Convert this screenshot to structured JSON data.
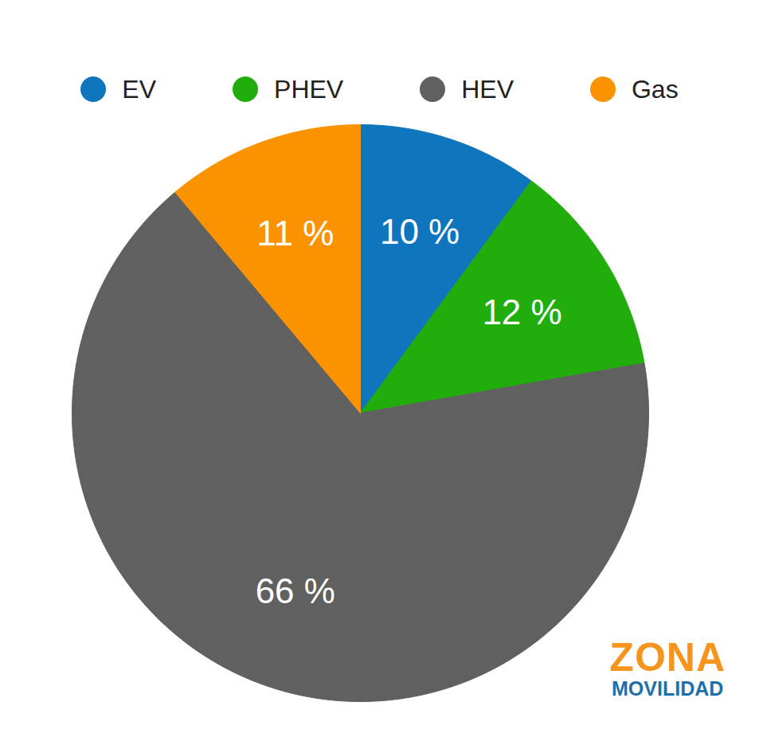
{
  "chart_data": {
    "type": "pie",
    "categories": [
      "EV",
      "PHEV",
      "HEV",
      "Gas"
    ],
    "values": [
      10,
      12,
      66,
      11
    ],
    "value_labels": [
      "10 %",
      "12 %",
      "66 %",
      "11 %"
    ],
    "colors": [
      "#0f75bc",
      "#21ad0b",
      "#606060",
      "#fb9300"
    ],
    "legend": "top",
    "data_labels": true,
    "annotations": [
      "ZONA",
      "MOVILIDAD"
    ]
  }
}
